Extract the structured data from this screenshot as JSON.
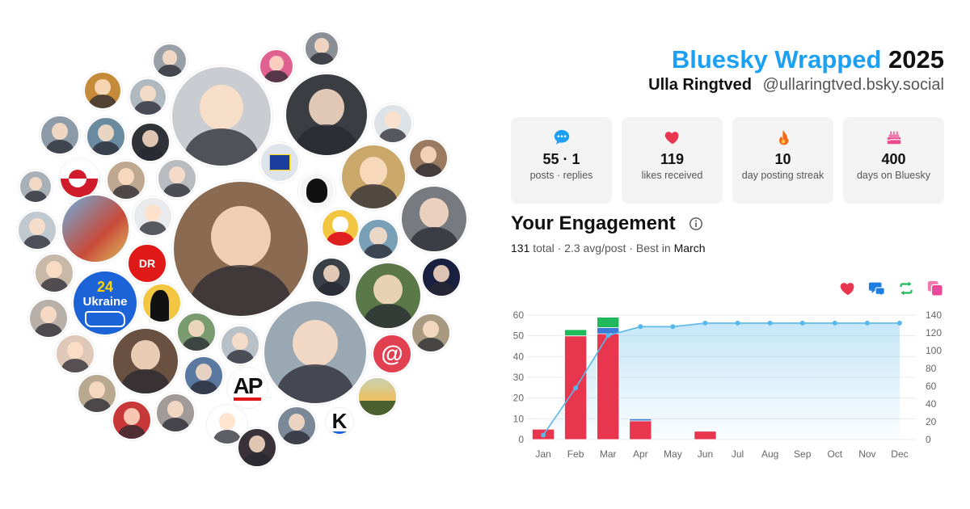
{
  "header": {
    "brand": "Bluesky Wrapped",
    "year": "2025",
    "display_name": "Ulla Ringtved",
    "handle": "@ullaringtved.bsky.social"
  },
  "stats": [
    {
      "icon": "speech-bubble-icon",
      "value": "55 · 1",
      "label": "posts · replies",
      "color": "#1ca0f2"
    },
    {
      "icon": "heart-icon",
      "value": "119",
      "label": "likes received",
      "color": "#e8364f"
    },
    {
      "icon": "flame-icon",
      "value": "10",
      "label": "day posting streak",
      "color": "#f26b1d"
    },
    {
      "icon": "cake-icon",
      "value": "400",
      "label": "days on Bluesky",
      "color": "#e84a8a"
    }
  ],
  "engagement": {
    "title": "Your Engagement",
    "total": "131",
    "total_label": "total",
    "avg": "2.3 avg/post",
    "best_label": "Best in",
    "best_month": "March"
  },
  "legend": [
    {
      "icon": "heart-icon",
      "color": "#e8364f"
    },
    {
      "icon": "reply-icon",
      "color": "#1c7fe0"
    },
    {
      "icon": "repost-icon",
      "color": "#1fb85b"
    },
    {
      "icon": "quote-icon",
      "color": "#e84a9a"
    }
  ],
  "collage": {
    "logos": {
      "ukraine_24": "24",
      "ukraine": "Ukraine",
      "dr": "DR",
      "ap": "AP",
      "at": "@",
      "k": "K"
    }
  },
  "chart_data": {
    "type": "bar",
    "categories": [
      "Jan",
      "Feb",
      "Mar",
      "Apr",
      "May",
      "Jun",
      "Jul",
      "Aug",
      "Sep",
      "Oct",
      "Nov",
      "Dec"
    ],
    "series": [
      {
        "name": "likes",
        "color": "#e8364f",
        "values": [
          5,
          50,
          51,
          9,
          0,
          4,
          0,
          0,
          0,
          0,
          0,
          0
        ]
      },
      {
        "name": "replies",
        "color": "#3a7bd5",
        "values": [
          0,
          0,
          3,
          1,
          0,
          0,
          0,
          0,
          0,
          0,
          0,
          0
        ]
      },
      {
        "name": "reposts",
        "color": "#1fb85b",
        "values": [
          0,
          3,
          5,
          0,
          0,
          0,
          0,
          0,
          0,
          0,
          0,
          0
        ]
      },
      {
        "name": "quotes",
        "color": "#e84a9a",
        "values": [
          0,
          0,
          0,
          0,
          0,
          0,
          0,
          0,
          0,
          0,
          0,
          0
        ]
      }
    ],
    "cumulative": {
      "name": "cumulative",
      "color": "#5bb8ea",
      "values": [
        5,
        58,
        117,
        127,
        127,
        131,
        131,
        131,
        131,
        131,
        131,
        131
      ]
    },
    "ylim_left": [
      0,
      60
    ],
    "yticks_left": [
      0,
      10,
      20,
      30,
      40,
      50,
      60
    ],
    "ylim_right": [
      0,
      140
    ],
    "yticks_right": [
      0,
      20,
      40,
      60,
      80,
      100,
      120,
      140
    ],
    "grid": true
  }
}
